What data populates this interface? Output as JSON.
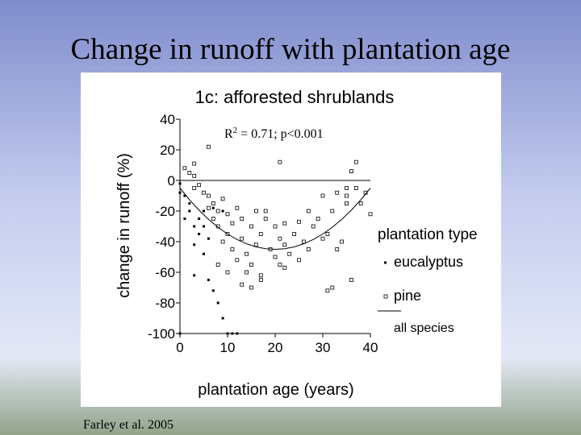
{
  "slide_title": "Change in runoff with plantation age",
  "footer": "Farley et al. 2005",
  "chart_data": {
    "type": "scatter",
    "title": "1c: afforested shrublands",
    "x_label": "plantation age (years)",
    "y_label": "change in runoff (%)",
    "annotation": {
      "base": "R",
      "sup": "2",
      "rest": " = 0.71; p<0.001"
    },
    "legend_title": "plantation type",
    "zero_line": true,
    "xlim": [
      0,
      40
    ],
    "xticks": [
      0,
      10,
      20,
      30,
      40
    ],
    "ylim": [
      -100,
      40
    ],
    "yticks": [
      40,
      20,
      0,
      -20,
      -40,
      -60,
      -80,
      -100
    ],
    "series": [
      {
        "name": "eucalyptus",
        "color": "#000000",
        "marker": "filled-square",
        "x": [
          0,
          0,
          1,
          1,
          2,
          2,
          3,
          3,
          4,
          4,
          5,
          5,
          6,
          7,
          7,
          8,
          8,
          9,
          3,
          6,
          10,
          11,
          12,
          0,
          5,
          9
        ],
        "values": [
          -2,
          -8,
          -10,
          -25,
          -15,
          -20,
          -30,
          -42,
          -35,
          -25,
          -48,
          -20,
          -38,
          -18,
          -72,
          -80,
          -55,
          -90,
          -62,
          -65,
          -100,
          -100,
          -100,
          -100,
          -30,
          -20
        ]
      },
      {
        "name": "pine",
        "color": "#000000",
        "marker": "open-square",
        "x": [
          1,
          2,
          3,
          3,
          4,
          5,
          6,
          6,
          7,
          7,
          8,
          8,
          9,
          9,
          10,
          10,
          11,
          11,
          12,
          12,
          13,
          13,
          14,
          14,
          15,
          15,
          16,
          16,
          17,
          17,
          18,
          19,
          20,
          20,
          21,
          21,
          22,
          22,
          23,
          24,
          25,
          26,
          27,
          28,
          29,
          30,
          31,
          32,
          33,
          34,
          35,
          35,
          36,
          37,
          38,
          39,
          40,
          6,
          21,
          37,
          36,
          3,
          32,
          31,
          10,
          8,
          13,
          15,
          17,
          22,
          25,
          27,
          18,
          30,
          33,
          35
        ],
        "values": [
          8,
          5,
          3,
          -5,
          -3,
          -8,
          -10,
          -18,
          -15,
          -25,
          -20,
          -30,
          -12,
          -40,
          -22,
          -35,
          -45,
          -28,
          -18,
          -52,
          -38,
          -25,
          -48,
          -60,
          -30,
          -55,
          -42,
          -20,
          -62,
          -35,
          -25,
          -45,
          -50,
          -30,
          -38,
          -55,
          -42,
          -28,
          -48,
          -35,
          -52,
          -40,
          -45,
          -30,
          -25,
          -38,
          -35,
          -20,
          -45,
          -40,
          -15,
          -10,
          -65,
          -5,
          -15,
          -8,
          -22,
          22,
          12,
          12,
          6,
          11,
          -70,
          -72,
          -60,
          -55,
          -68,
          -70,
          -65,
          -57,
          -27,
          -20,
          -20,
          -10,
          -8,
          -5
        ]
      },
      {
        "name": "all species",
        "color": "#000000",
        "marker": "line",
        "x": [
          0,
          2,
          4,
          6,
          8,
          10,
          12,
          14,
          16,
          18,
          20,
          22,
          24,
          26,
          28,
          30,
          32,
          34,
          36,
          38,
          40
        ],
        "values": [
          -5,
          -12.6,
          -19.4,
          -25.4,
          -30.6,
          -35,
          -38.6,
          -41.4,
          -43.4,
          -44.6,
          -45,
          -44.6,
          -43.4,
          -41.4,
          -38.6,
          -35,
          -30.6,
          -25.4,
          -19.4,
          -12.6,
          -5
        ]
      }
    ]
  }
}
